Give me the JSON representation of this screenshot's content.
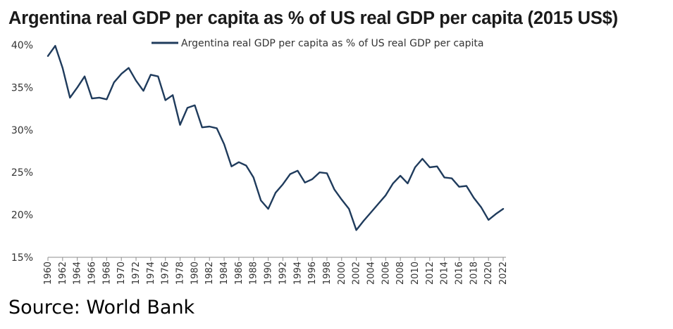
{
  "title": "Argentina real GDP per capita as % of US real GDP per capita (2015 US$)",
  "source": "Source: World Bank",
  "colors": {
    "series": "#1f3b5c",
    "axis": "#8c8c8c",
    "text": "#333333"
  },
  "chart_data": {
    "type": "line",
    "title": "Argentina real GDP per capita as % of US real GDP per capita (2015 US$)",
    "xlabel": "",
    "ylabel": "",
    "ylim": [
      15,
      40
    ],
    "yticks": [
      15,
      20,
      25,
      30,
      35,
      40
    ],
    "yticklabels": [
      "15%",
      "20%",
      "25%",
      "30%",
      "35%",
      "40%"
    ],
    "xlim": [
      1960,
      2022
    ],
    "xticklabels": [
      "1960",
      "1962",
      "1964",
      "1966",
      "1968",
      "1970",
      "1972",
      "1974",
      "1976",
      "1978",
      "1980",
      "1982",
      "1984",
      "1986",
      "1988",
      "1990",
      "1992",
      "1994",
      "1996",
      "1998",
      "2000",
      "2002",
      "2004",
      "2006",
      "2008",
      "2010",
      "2012",
      "2014",
      "2016",
      "2018",
      "2020",
      "2022"
    ],
    "grid": false,
    "legend_position": "top",
    "series": [
      {
        "name": "Argentina real GDP per capita as % of US real GDP per capita",
        "x": [
          1960,
          1961,
          1962,
          1963,
          1964,
          1965,
          1966,
          1967,
          1968,
          1969,
          1970,
          1971,
          1972,
          1973,
          1974,
          1975,
          1976,
          1977,
          1978,
          1979,
          1980,
          1981,
          1982,
          1983,
          1984,
          1985,
          1986,
          1987,
          1988,
          1989,
          1990,
          1991,
          1992,
          1993,
          1994,
          1995,
          1996,
          1997,
          1998,
          1999,
          2000,
          2001,
          2002,
          2003,
          2004,
          2005,
          2006,
          2007,
          2008,
          2009,
          2010,
          2011,
          2012,
          2013,
          2014,
          2015,
          2016,
          2017,
          2018,
          2019,
          2020,
          2021,
          2022
        ],
        "values": [
          38.7,
          39.9,
          37.3,
          33.8,
          35.0,
          36.3,
          33.7,
          33.8,
          33.6,
          35.6,
          36.6,
          37.3,
          35.8,
          34.6,
          36.5,
          36.3,
          33.5,
          34.1,
          30.6,
          32.6,
          32.9,
          30.3,
          30.4,
          30.2,
          28.3,
          25.7,
          26.2,
          25.8,
          24.4,
          21.7,
          20.7,
          22.6,
          23.6,
          24.8,
          25.2,
          23.8,
          24.2,
          25.0,
          24.9,
          23.0,
          21.8,
          20.7,
          18.2,
          19.3,
          20.3,
          21.3,
          22.3,
          23.7,
          24.6,
          23.7,
          25.6,
          26.6,
          25.6,
          25.7,
          24.4,
          24.3,
          23.3,
          23.4,
          22.0,
          20.9,
          19.4,
          20.1,
          20.7
        ]
      }
    ]
  }
}
